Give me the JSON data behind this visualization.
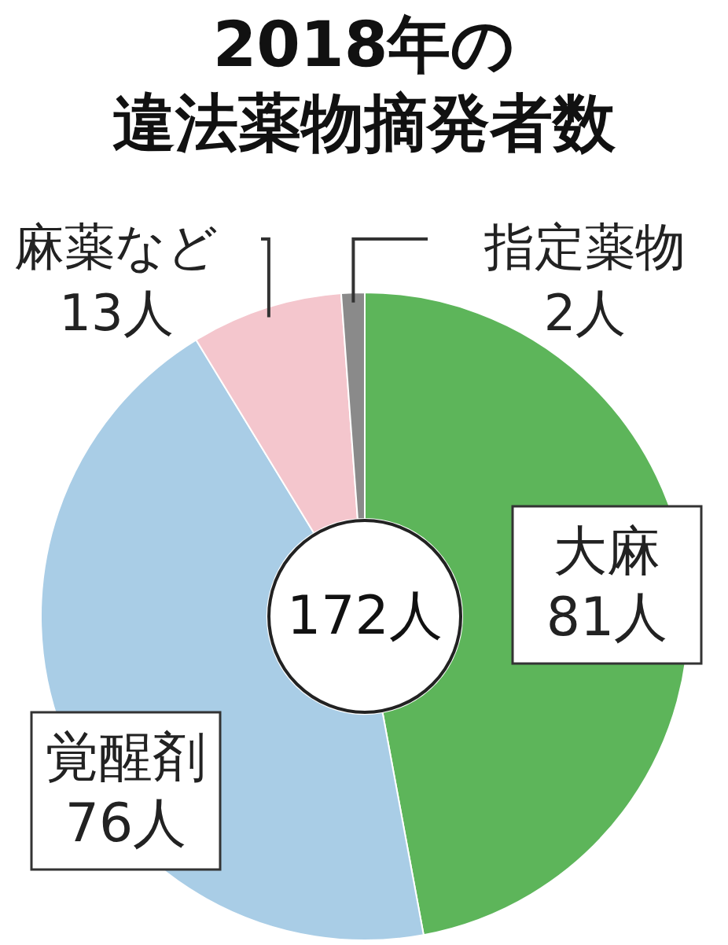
{
  "chart_data": {
    "type": "donut",
    "title": "2018年の違法薬物摘発者数",
    "categories": [
      "大麻",
      "覚醒剤",
      "麻薬など",
      "指定薬物"
    ],
    "values": [
      81,
      76,
      13,
      2
    ],
    "value_labels": [
      "81人",
      "76人",
      "13人",
      "2人"
    ],
    "colors": [
      "#5db55a",
      "#a9cde6",
      "#f4c6cd",
      "#8a8a8a"
    ],
    "annotations": [
      "172人"
    ]
  }
}
